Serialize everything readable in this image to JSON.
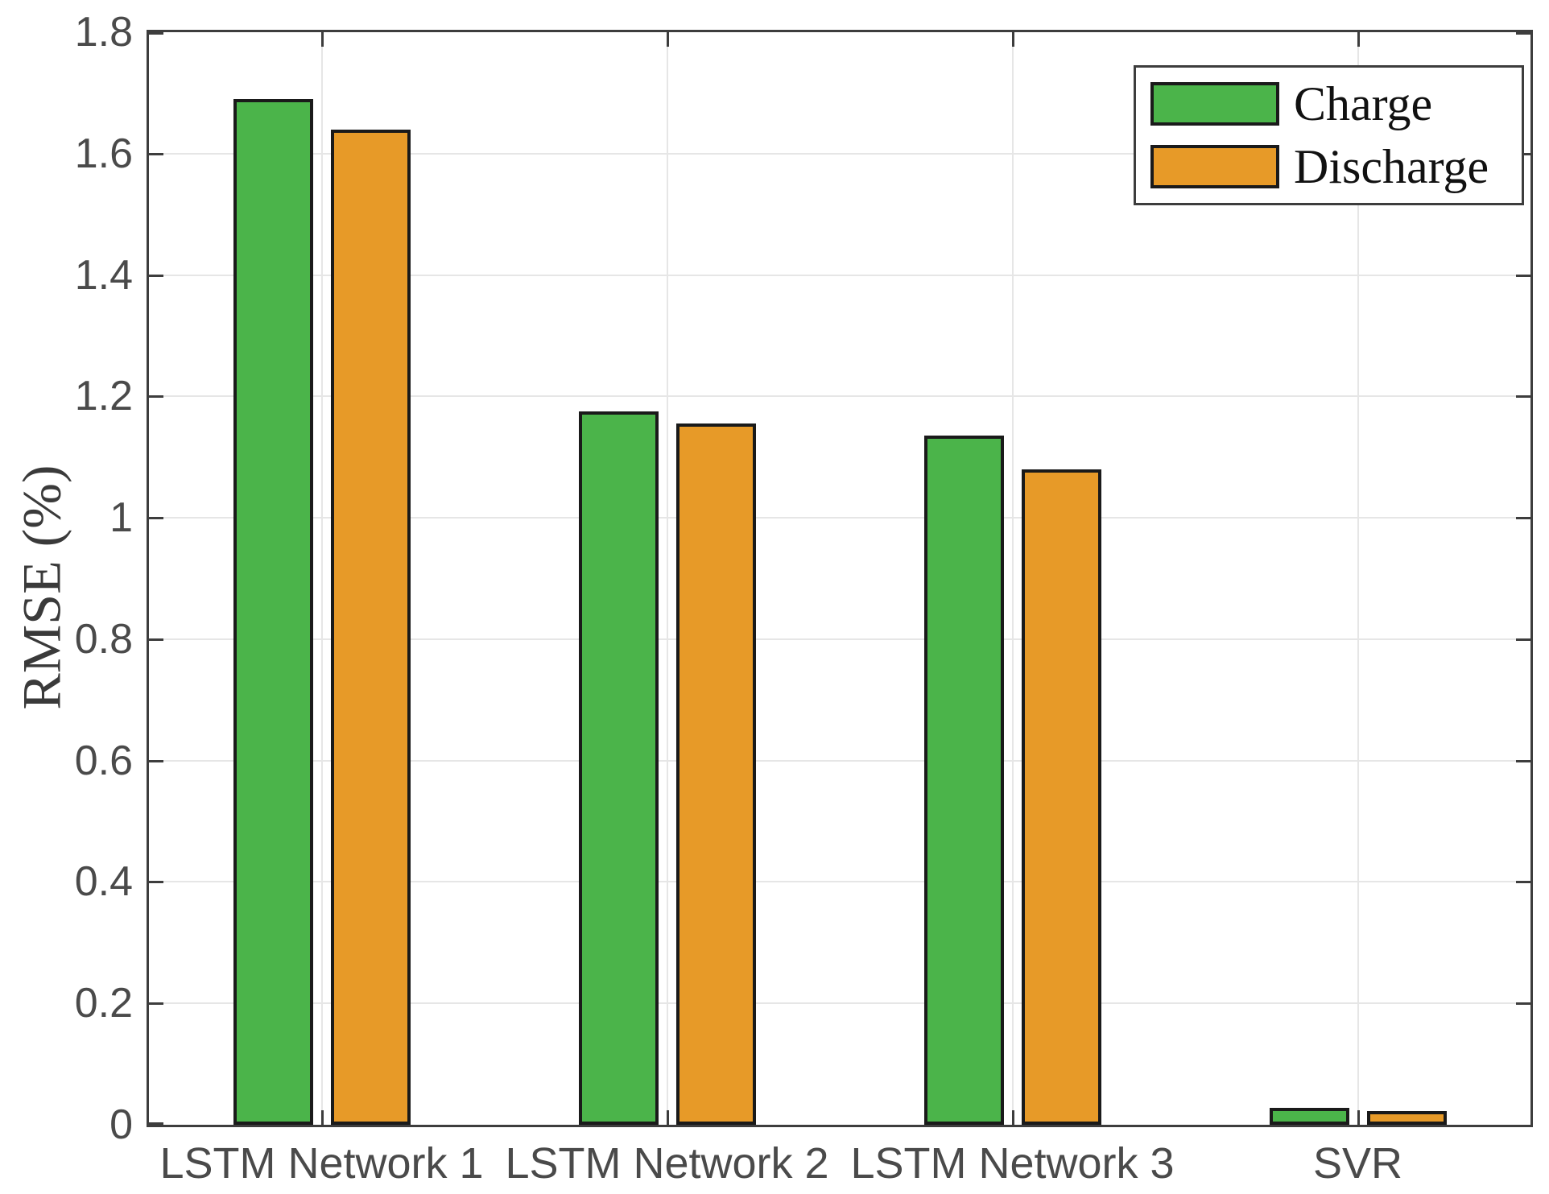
{
  "chart_data": {
    "type": "bar",
    "categories": [
      "LSTM Network 1",
      "LSTM Network 2",
      "LSTM Network 3",
      "SVR"
    ],
    "series": [
      {
        "name": "Charge",
        "color": "#4bb44a",
        "values": [
          1.69,
          1.175,
          1.135,
          0.028
        ]
      },
      {
        "name": "Discharge",
        "color": "#e79a28",
        "values": [
          1.64,
          1.155,
          1.08,
          0.023
        ]
      }
    ],
    "title": "",
    "xlabel": "",
    "ylabel": "RMSE (%)",
    "ylim": [
      0,
      1.8
    ],
    "yticks": [
      0,
      0.2,
      0.4,
      0.6,
      0.8,
      1,
      1.2,
      1.4,
      1.6,
      1.8
    ],
    "ytick_labels": [
      "0",
      "0.2",
      "0.4",
      "0.6",
      "0.8",
      "1",
      "1.2",
      "1.4",
      "1.6",
      "1.8"
    ],
    "grid": true,
    "legend_position": "top-right",
    "legend_entries": [
      "Charge",
      "Discharge"
    ]
  },
  "style": {
    "axis_color": "#3d3d3d",
    "grid_color": "#e6e6e6",
    "bar_edge_color": "#1a1a1a",
    "tick_label_color": "#4a4a4a",
    "legend_text_color": "#111111",
    "background_color": "#ffffff"
  }
}
